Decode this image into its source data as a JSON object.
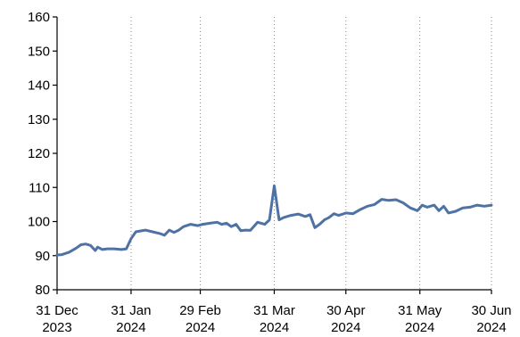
{
  "chart_data": {
    "type": "line",
    "title": "",
    "xlabel": "",
    "ylabel": "",
    "ylim": [
      80,
      160
    ],
    "yticks": [
      80,
      90,
      100,
      110,
      120,
      130,
      140,
      150,
      160
    ],
    "xlim": [
      "2023-12-31",
      "2024-06-30"
    ],
    "xticks": [
      {
        "date": "2023-12-31",
        "line1": "31 Dec",
        "line2": "2023"
      },
      {
        "date": "2024-01-31",
        "line1": "31 Jan",
        "line2": "2024"
      },
      {
        "date": "2024-02-29",
        "line1": "29 Feb",
        "line2": "2024"
      },
      {
        "date": "2024-03-31",
        "line1": "31 Mar",
        "line2": "2024"
      },
      {
        "date": "2024-04-30",
        "line1": "30 Apr",
        "line2": "2024"
      },
      {
        "date": "2024-05-31",
        "line1": "31 May",
        "line2": "2024"
      },
      {
        "date": "2024-06-30",
        "line1": "30 Jun",
        "line2": "2024"
      }
    ],
    "grid": {
      "x": true,
      "y": false,
      "style": "dotted"
    },
    "line_color": "#4f72a6",
    "series": [
      {
        "x": [
          "2023-12-31",
          "2024-01-02",
          "2024-01-05",
          "2024-01-08",
          "2024-01-10",
          "2024-01-12",
          "2024-01-14",
          "2024-01-16",
          "2024-01-17",
          "2024-01-19",
          "2024-01-21",
          "2024-01-24",
          "2024-01-27",
          "2024-01-29",
          "2024-01-31",
          "2024-02-02",
          "2024-02-06",
          "2024-02-09",
          "2024-02-12",
          "2024-02-14",
          "2024-02-16",
          "2024-02-18",
          "2024-02-20",
          "2024-02-22",
          "2024-02-25",
          "2024-02-28",
          "2024-03-01",
          "2024-03-04",
          "2024-03-07",
          "2024-03-09",
          "2024-03-11",
          "2024-03-13",
          "2024-03-15",
          "2024-03-17",
          "2024-03-19",
          "2024-03-21",
          "2024-03-24",
          "2024-03-27",
          "2024-03-29",
          "2024-03-31",
          "2024-04-02",
          "2024-04-04",
          "2024-04-07",
          "2024-04-10",
          "2024-04-13",
          "2024-04-15",
          "2024-04-17",
          "2024-04-19",
          "2024-04-21",
          "2024-04-23",
          "2024-04-25",
          "2024-04-27",
          "2024-04-30",
          "2024-05-03",
          "2024-05-06",
          "2024-05-09",
          "2024-05-12",
          "2024-05-15",
          "2024-05-18",
          "2024-05-21",
          "2024-05-24",
          "2024-05-27",
          "2024-05-30",
          "2024-06-01",
          "2024-06-03",
          "2024-06-06",
          "2024-06-08",
          "2024-06-10",
          "2024-06-12",
          "2024-06-15",
          "2024-06-18",
          "2024-06-21",
          "2024-06-24",
          "2024-06-27",
          "2024-06-30"
        ],
        "y": [
          90.2,
          90.3,
          91,
          92.2,
          93.2,
          93.4,
          93,
          91.5,
          92.5,
          91.8,
          92,
          92,
          91.8,
          92,
          95,
          97,
          97.5,
          97,
          96.5,
          96,
          97.5,
          96.8,
          97.5,
          98.5,
          99.2,
          98.8,
          99.2,
          99.5,
          99.8,
          99.2,
          99.5,
          98.5,
          99.2,
          97.3,
          97.5,
          97.4,
          99.8,
          99.2,
          100.5,
          110.5,
          100.5,
          101.2,
          101.8,
          102.2,
          101.5,
          102,
          98.2,
          99.2,
          100.5,
          101.2,
          102.3,
          101.8,
          102.5,
          102.3,
          103.5,
          104.5,
          105,
          106.5,
          106.2,
          106.4,
          105.5,
          104,
          103.2,
          104.8,
          104.2,
          104.8,
          103.2,
          104.5,
          102.5,
          103,
          104,
          104.2,
          104.8,
          104.5,
          104.8
        ]
      }
    ]
  }
}
